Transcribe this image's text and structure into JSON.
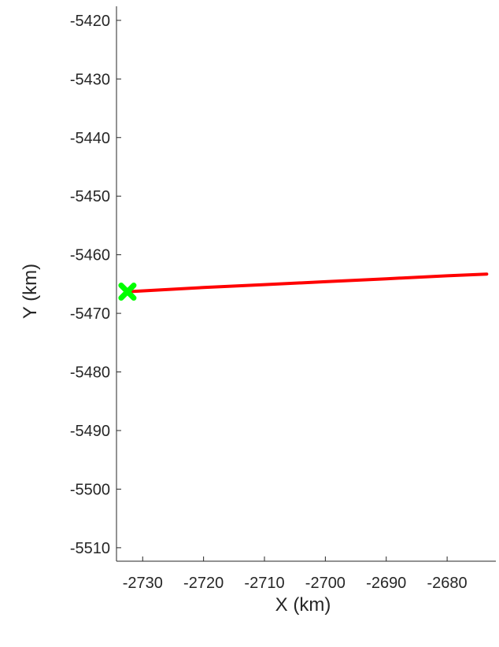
{
  "chart_data": {
    "type": "line",
    "title": "",
    "xlabel": "X (km)",
    "ylabel": "Y (km)",
    "xlim": [
      -2734.3,
      -2672
    ],
    "ylim": [
      -5512.3,
      -5417.6
    ],
    "xticks": [
      -2730,
      -2720,
      -2710,
      -2700,
      -2690,
      -2680
    ],
    "yticks": [
      -5420,
      -5430,
      -5440,
      -5450,
      -5460,
      -5470,
      -5480,
      -5490,
      -5500,
      -5510
    ],
    "grid": false,
    "series": [
      {
        "color": "#ff0000",
        "x": [
          -2732.5,
          -2720,
          -2710,
          -2700,
          -2690,
          -2680,
          -2673.5
        ],
        "y": [
          -5466.3,
          -5465.6,
          -5465.1,
          -5464.6,
          -5464.1,
          -5463.6,
          -5463.3
        ]
      }
    ],
    "markers": [
      {
        "shape": "x-cross",
        "color": "#00ff00",
        "x": -2732.5,
        "y": -5466.3
      }
    ]
  }
}
